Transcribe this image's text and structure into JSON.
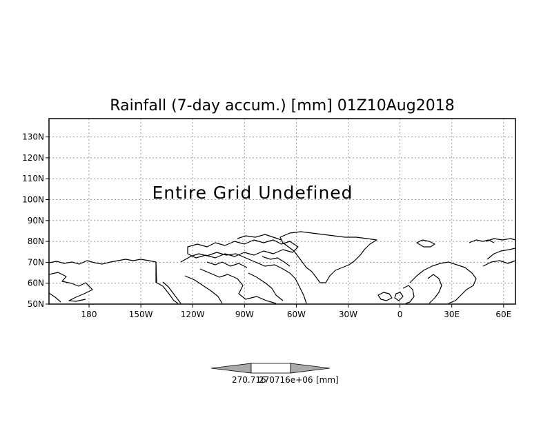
{
  "title": "Rainfall (7-day accum.) [mm] 01Z10Aug2018",
  "message": "Entire Grid Undefined",
  "lat_labels": [
    "130N",
    "120N",
    "110N",
    "100N",
    "90N",
    "80N",
    "70N",
    "60N",
    "50N"
  ],
  "lon_labels": [
    "180",
    "150W",
    "120W",
    "90W",
    "60W",
    "30W",
    "0",
    "30E",
    "60E"
  ],
  "colorbar": {
    "value_label": "270.716",
    "overlap_label": "270716e+06",
    "unit_label": "[mm]"
  }
}
